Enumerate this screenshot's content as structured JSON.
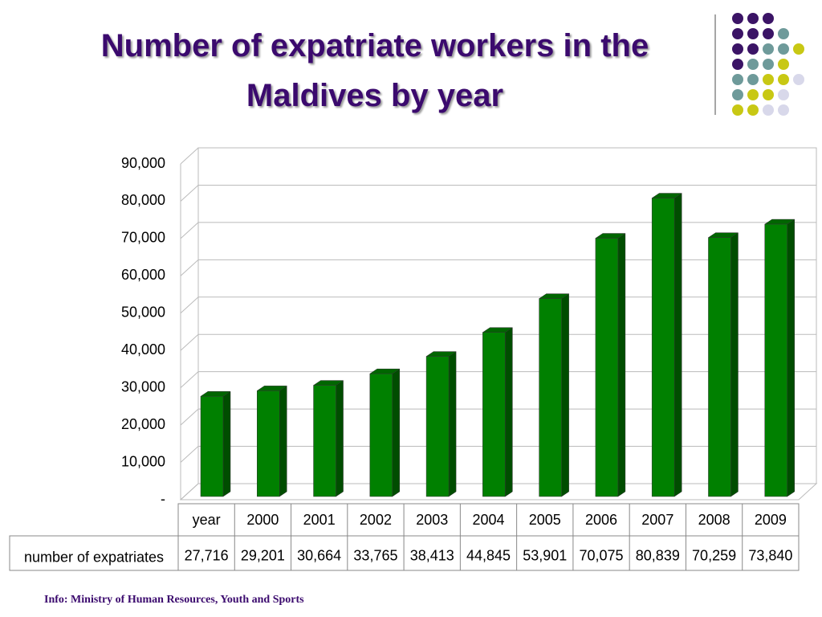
{
  "chart_data": {
    "type": "bar3d",
    "title": "Number of expatriate workers in the Maldives by year",
    "source": "Info: Ministry of Human Resources, Youth and Sports",
    "categories": [
      "year",
      "2000",
      "2001",
      "2002",
      "2003",
      "2004",
      "2005",
      "2006",
      "2007",
      "2008",
      "2009"
    ],
    "series": [
      {
        "name": "number of expatriates",
        "color": "#008000",
        "values": [
          27716,
          29201,
          30664,
          33765,
          38413,
          44845,
          53901,
          70075,
          80839,
          70259,
          73840
        ],
        "value_labels": [
          "27,716",
          "29,201",
          "30,664",
          "33,765",
          "38,413",
          "44,845",
          "53,901",
          "70,075",
          "80,839",
          "70,259",
          "73,840"
        ]
      }
    ],
    "ylim": [
      0,
      90000
    ],
    "yticks": [
      {
        "value": 0,
        "label": "-"
      },
      {
        "value": 10000,
        "label": "10,000"
      },
      {
        "value": 20000,
        "label": "20,000"
      },
      {
        "value": 30000,
        "label": "30,000"
      },
      {
        "value": 40000,
        "label": "40,000"
      },
      {
        "value": 50000,
        "label": "50,000"
      },
      {
        "value": 60000,
        "label": "60,000"
      },
      {
        "value": 70000,
        "label": "70,000"
      },
      {
        "value": 80000,
        "label": "80,000"
      },
      {
        "value": 90000,
        "label": "90,000"
      }
    ],
    "grid": true
  }
}
